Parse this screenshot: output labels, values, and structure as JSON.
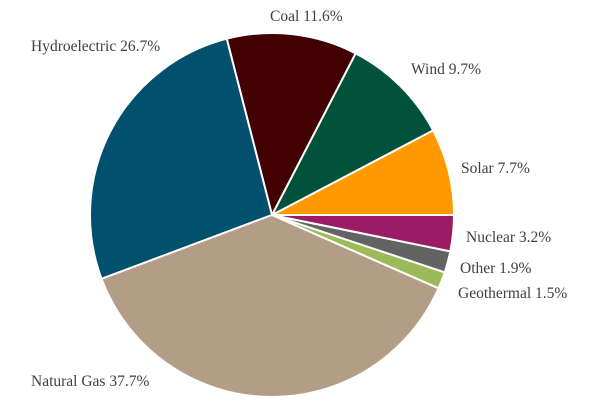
{
  "chart_data": {
    "type": "pie",
    "title": "",
    "start_angle_deg": 0,
    "direction": "counterclockwise",
    "slices": [
      {
        "name": "Solar",
        "value": 7.7,
        "label": "Solar 7.7%",
        "color": "#FF9900"
      },
      {
        "name": "Wind",
        "value": 9.7,
        "label": "Wind 9.7%",
        "color": "#00523A"
      },
      {
        "name": "Coal",
        "value": 11.6,
        "label": "Coal 11.6%",
        "color": "#420000"
      },
      {
        "name": "Hydroelectric",
        "value": 26.7,
        "label": "Hydroelectric 26.7%",
        "color": "#00506E"
      },
      {
        "name": "Natural Gas",
        "value": 37.7,
        "label": "Natural Gas 37.7%",
        "color": "#B49D87"
      },
      {
        "name": "Geothermal",
        "value": 1.5,
        "label": "Geothermal 1.5%",
        "color": "#9BBB59"
      },
      {
        "name": "Other",
        "value": 1.9,
        "label": "Other 1.9%",
        "color": "#636363"
      },
      {
        "name": "Nuclear",
        "value": 3.2,
        "label": "Nuclear 3.2%",
        "color": "#9B1C65"
      }
    ],
    "legend": "none",
    "data_labels": "outside, category name and percentage"
  },
  "labels": {
    "coal": "Coal 11.6%",
    "hydro": "Hydroelectric 26.7%",
    "wind": "Wind 9.7%",
    "solar": "Solar 7.7%",
    "nuclear": "Nuclear 3.2%",
    "other": "Other 1.9%",
    "geothermal": "Geothermal 1.5%",
    "natural_gas": "Natural Gas 37.7%"
  }
}
